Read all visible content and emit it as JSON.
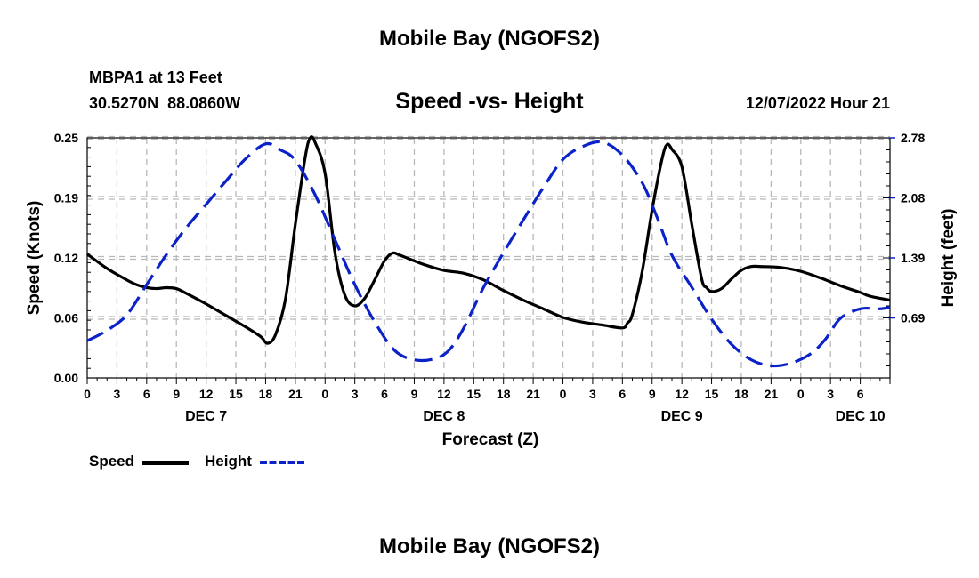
{
  "page": {
    "title": "Mobile Bay (NGOFS2)",
    "bottom_title": "Mobile Bay (NGOFS2)"
  },
  "station": {
    "name": "MBPA1 at 13 Feet",
    "coords": "30.5270N  88.0860W"
  },
  "subtitle": "Speed -vs- Height",
  "timestamp": "12/07/2022 Hour 21",
  "legend": {
    "speed_label": "Speed",
    "height_label": "Height"
  },
  "colors": {
    "speed": "#000000",
    "height": "#0a22c8",
    "grid": "#b8b8b8"
  },
  "chart_data": {
    "type": "line",
    "xlabel": "Forecast (Z)",
    "ylabel": "Speed (Knots)",
    "ylabel_right": "Height (feet)",
    "x_range_hours": [
      0,
      81
    ],
    "ylim": [
      0,
      0.25
    ],
    "ylim_right": [
      0,
      2.78
    ],
    "yticks": [
      "0.00",
      "0.06",
      "0.12",
      "0.19",
      "0.25"
    ],
    "ytick_values": [
      0,
      0.0625,
      0.125,
      0.1875,
      0.25
    ],
    "yticks_right": [
      "0.69",
      "1.39",
      "2.08",
      "2.78"
    ],
    "ytick_right_values": [
      0.695,
      1.39,
      2.085,
      2.78
    ],
    "xticks": [
      "0",
      "3",
      "6",
      "9",
      "12",
      "15",
      "18",
      "21",
      "0",
      "3",
      "6",
      "9",
      "12",
      "15",
      "18",
      "21",
      "0",
      "3",
      "6",
      "9",
      "12",
      "15",
      "18",
      "21",
      "0",
      "3",
      "6"
    ],
    "date_labels": [
      {
        "label": "DEC 7",
        "hour": 12
      },
      {
        "label": "DEC 8",
        "hour": 36
      },
      {
        "label": "DEC 9",
        "hour": 60
      },
      {
        "label": "DEC 10",
        "hour": 78
      }
    ],
    "series": [
      {
        "name": "Speed",
        "axis": "left",
        "style": "solid",
        "x": [
          0,
          2,
          4,
          5,
          6,
          7,
          8,
          9,
          10,
          12,
          14,
          16,
          17.5,
          18.2,
          19,
          20,
          21,
          22,
          22.5,
          23,
          24,
          25,
          26,
          27,
          28,
          29,
          30,
          30.8,
          31.5,
          32,
          34,
          36,
          38,
          40,
          42,
          44,
          46,
          48,
          50,
          52,
          54,
          54.5,
          55,
          56,
          57,
          58,
          58.5,
          59,
          60,
          61,
          62,
          62.5,
          63,
          64,
          65,
          66,
          67,
          68,
          70,
          72,
          74,
          76,
          78,
          79,
          81
        ],
        "values": [
          0.129,
          0.114,
          0.102,
          0.097,
          0.094,
          0.093,
          0.094,
          0.093,
          0.088,
          0.077,
          0.065,
          0.053,
          0.043,
          0.036,
          0.045,
          0.082,
          0.16,
          0.23,
          0.25,
          0.245,
          0.213,
          0.13,
          0.086,
          0.075,
          0.083,
          0.102,
          0.122,
          0.13,
          0.128,
          0.126,
          0.118,
          0.112,
          0.109,
          0.102,
          0.091,
          0.081,
          0.072,
          0.063,
          0.058,
          0.055,
          0.052,
          0.057,
          0.066,
          0.111,
          0.175,
          0.228,
          0.243,
          0.238,
          0.22,
          0.16,
          0.103,
          0.094,
          0.09,
          0.093,
          0.103,
          0.112,
          0.116,
          0.116,
          0.115,
          0.111,
          0.104,
          0.096,
          0.089,
          0.085,
          0.081
        ]
      },
      {
        "name": "Height",
        "axis": "right",
        "style": "dashed",
        "x": [
          0,
          2,
          4,
          6,
          8,
          10,
          12,
          14,
          16,
          18,
          19.5,
          21,
          23,
          25,
          27,
          29,
          31,
          33,
          35,
          36.5,
          38,
          40,
          42,
          44,
          46,
          48,
          50,
          52,
          54,
          56,
          57.5,
          59,
          61,
          63,
          65,
          67,
          69,
          71,
          73,
          74.5,
          76,
          78,
          80,
          81
        ],
        "values": [
          0.43,
          0.55,
          0.73,
          1.08,
          1.43,
          1.74,
          2.01,
          2.28,
          2.54,
          2.71,
          2.64,
          2.52,
          2.12,
          1.6,
          1.08,
          0.65,
          0.32,
          0.21,
          0.22,
          0.32,
          0.58,
          1.05,
          1.45,
          1.83,
          2.2,
          2.53,
          2.68,
          2.73,
          2.58,
          2.26,
          1.86,
          1.42,
          1.05,
          0.68,
          0.39,
          0.21,
          0.14,
          0.17,
          0.28,
          0.45,
          0.69,
          0.8,
          0.8,
          0.82
        ]
      }
    ]
  }
}
